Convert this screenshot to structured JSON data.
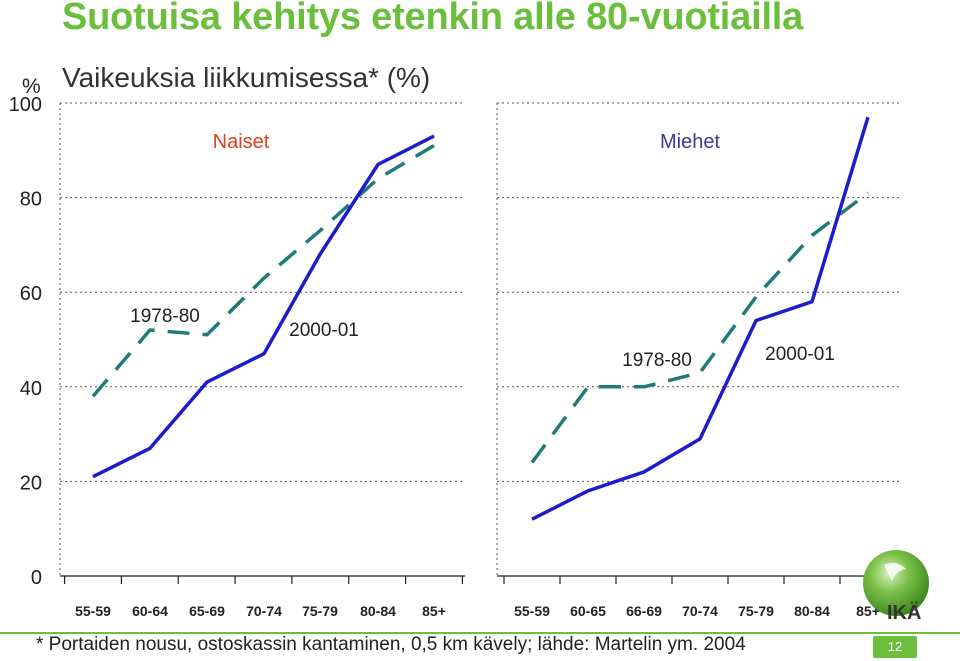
{
  "page": {
    "title": "Suotuisa kehitys etenkin alle 80-vuotiailla",
    "subtitle": "Vaikeuksia liikkumisessa* (%)",
    "unit": "%",
    "footnote": "* Portaiden nousu, ostoskassin kantaminen, 0,5 km kävely; lähde: Martelin ym. 2004",
    "page_number": "12",
    "age_label": "IKÄ"
  },
  "colors": {
    "title": "#6bbf3c",
    "series_2000": "#1c1ccc",
    "series_1978": "#1f7a78",
    "naiset_label": "#e2401a",
    "miehet_label": "#3a3a99"
  },
  "chart_data": [
    {
      "type": "line",
      "title": "Naiset",
      "categories": [
        "55-59",
        "60-64",
        "65-69",
        "70-74",
        "75-79",
        "80-84",
        "85+"
      ],
      "ylim": [
        0,
        100
      ],
      "yticks": [
        0,
        20,
        40,
        60,
        80,
        100
      ],
      "grid": true,
      "series": [
        {
          "name": "1978-80",
          "style": "dashed",
          "values": [
            38,
            52,
            51,
            63,
            73,
            84,
            91
          ]
        },
        {
          "name": "2000-01",
          "style": "solid",
          "values": [
            21,
            27,
            41,
            47,
            68,
            87,
            93
          ]
        }
      ]
    },
    {
      "type": "line",
      "title": "Miehet",
      "categories": [
        "55-59",
        "60-65",
        "66-69",
        "70-74",
        "75-79",
        "80-84",
        "85+"
      ],
      "ylim": [
        0,
        100
      ],
      "yticks": [
        0,
        20,
        40,
        60,
        80,
        100
      ],
      "grid": true,
      "series": [
        {
          "name": "1978-80",
          "style": "dashed",
          "values": [
            24,
            40,
            40,
            43,
            59,
            72,
            81
          ]
        },
        {
          "name": "2000-01",
          "style": "solid",
          "values": [
            12,
            18,
            22,
            29,
            54,
            58,
            97
          ]
        }
      ]
    }
  ]
}
